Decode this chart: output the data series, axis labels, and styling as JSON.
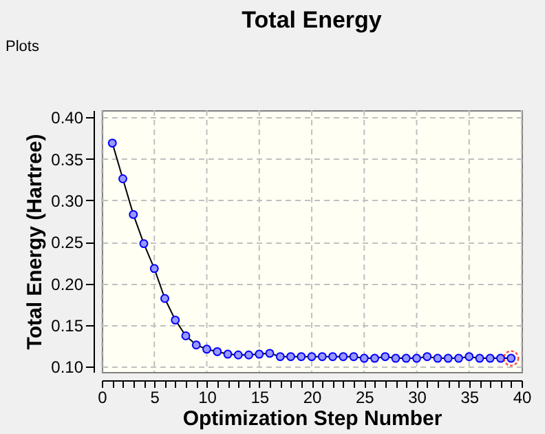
{
  "chart_data": {
    "type": "line",
    "title": "Total Energy",
    "xlabel": "Optimization Step Number",
    "ylabel": "Total Energy (Hartree)",
    "annotations": [
      "Plots"
    ],
    "x": [
      1,
      2,
      3,
      4,
      5,
      6,
      7,
      8,
      9,
      10,
      11,
      12,
      13,
      14,
      15,
      16,
      17,
      18,
      19,
      20,
      21,
      22,
      23,
      24,
      25,
      26,
      27,
      28,
      29,
      30,
      31,
      32,
      33,
      34,
      35,
      36,
      37,
      38,
      39
    ],
    "series": [
      {
        "color": "#0000ff",
        "values": [
          0.369,
          0.326,
          0.283,
          0.248,
          0.218,
          0.182,
          0.156,
          0.137,
          0.126,
          0.121,
          0.118,
          0.115,
          0.114,
          0.114,
          0.115,
          0.116,
          0.112,
          0.112,
          0.112,
          0.112,
          0.112,
          0.112,
          0.112,
          0.112,
          0.11,
          0.11,
          0.112,
          0.11,
          0.11,
          0.11,
          0.112,
          0.11,
          0.11,
          0.11,
          0.112,
          0.11,
          0.11,
          0.11,
          0.11
        ]
      },
      {
        "type": "scatter",
        "x": [
          39
        ],
        "values": [
          0.11
        ],
        "color": "#ff0000"
      }
    ],
    "xlim": [
      0,
      40
    ],
    "ylim": [
      0.0935,
      0.4085
    ],
    "xticks": [
      0,
      {
        "value": 1,
        "label": null
      },
      {
        "value": 2,
        "label": null
      },
      {
        "value": 3,
        "label": null
      },
      {
        "value": 4,
        "label": null
      },
      5,
      {
        "value": 6,
        "label": null
      },
      {
        "value": 7,
        "label": null
      },
      {
        "value": 8,
        "label": null
      },
      {
        "value": 9,
        "label": null
      },
      10,
      {
        "value": 11,
        "label": null
      },
      {
        "value": 12,
        "label": null
      },
      {
        "value": 13,
        "label": null
      },
      {
        "value": 14,
        "label": null
      },
      15,
      {
        "value": 16,
        "label": null
      },
      {
        "value": 17,
        "label": null
      },
      {
        "value": 18,
        "label": null
      },
      {
        "value": 19,
        "label": null
      },
      20,
      {
        "value": 21,
        "label": null
      },
      {
        "value": 22,
        "label": null
      },
      {
        "value": 23,
        "label": null
      },
      {
        "value": 24,
        "label": null
      },
      25,
      {
        "value": 26,
        "label": null
      },
      {
        "value": 27,
        "label": null
      },
      {
        "value": 28,
        "label": null
      },
      {
        "value": 29,
        "label": null
      },
      30,
      {
        "value": 31,
        "label": null
      },
      {
        "value": 32,
        "label": null
      },
      {
        "value": 33,
        "label": null
      },
      {
        "value": 34,
        "label": null
      },
      35,
      {
        "value": 36,
        "label": null
      },
      {
        "value": 37,
        "label": null
      },
      {
        "value": 38,
        "label": null
      },
      {
        "value": 39,
        "label": null
      },
      40
    ],
    "yticks": [
      {
        "value": 0.1,
        "label": "0.10"
      },
      {
        "value": 0.15,
        "label": "0.15"
      },
      {
        "value": 0.2,
        "label": "0.20"
      },
      {
        "value": 0.25,
        "label": "0.25"
      },
      {
        "value": 0.3,
        "label": "0.30"
      },
      {
        "value": 0.35,
        "label": "0.35"
      },
      {
        "value": 0.4,
        "label": "0.40"
      }
    ],
    "grid": true,
    "marker": "circle",
    "line_style": "solid"
  }
}
